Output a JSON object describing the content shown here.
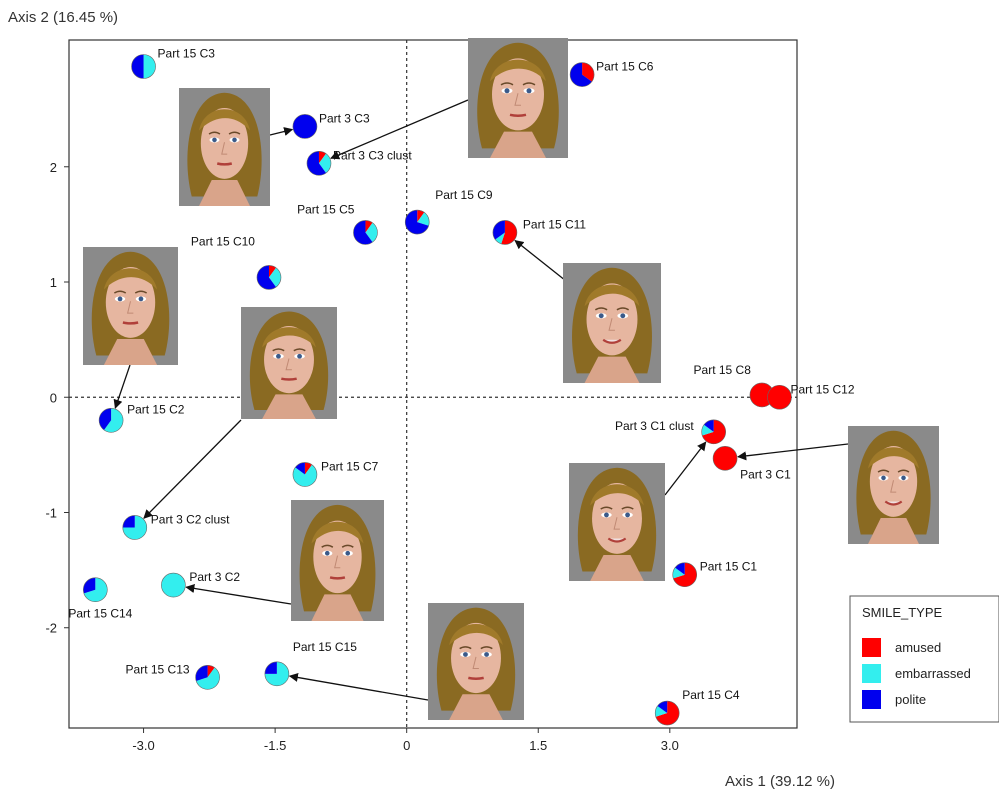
{
  "chart_data": {
    "type": "scatter",
    "title": "",
    "xlabel": "Axis 1 (39.12 %)",
    "ylabel": "Axis 2 (16.45 %)",
    "xlim": [
      -3.85,
      4.45
    ],
    "ylim": [
      -2.87,
      3.1
    ],
    "x_ticks": [
      {
        "v": -3.0,
        "label": "-3.0"
      },
      {
        "v": -1.5,
        "label": "-1.5"
      },
      {
        "v": 0,
        "label": "0"
      },
      {
        "v": 1.5,
        "label": "1.5"
      },
      {
        "v": 3.0,
        "label": "3.0"
      }
    ],
    "y_ticks": [
      {
        "v": 2,
        "label": "2"
      },
      {
        "v": 1,
        "label": "1"
      },
      {
        "v": 0,
        "label": "0"
      },
      {
        "v": -1,
        "label": "-1"
      },
      {
        "v": -2,
        "label": "-2"
      }
    ],
    "reference_lines": {
      "x": 0,
      "y": 0,
      "style": "dotted"
    },
    "grid": false,
    "legend": {
      "title": "SMILE_TYPE",
      "position": "bottom-right",
      "entries": [
        {
          "name": "amused",
          "color": "#ff0000"
        },
        {
          "name": "embarrassed",
          "color": "#33eeee"
        },
        {
          "name": "polite",
          "color": "#0000ee"
        }
      ]
    },
    "series_colors": [
      "#ff0000",
      "#33eeee",
      "#0000ee"
    ],
    "points": [
      {
        "label": "Part 15 C3",
        "x": -3.0,
        "y": 2.87,
        "dx": 14,
        "dy": -9,
        "anchor": "start",
        "pie": [
          0,
          0.5,
          0.5
        ]
      },
      {
        "label": "Part 15 C6",
        "x": 2.0,
        "y": 2.8,
        "dx": 14,
        "dy": -4,
        "anchor": "start",
        "pie": [
          0.35,
          0,
          0.65
        ]
      },
      {
        "label": "Part 3 C3",
        "x": -1.16,
        "y": 2.35,
        "dx": 14,
        "dy": -4,
        "anchor": "start",
        "pie": [
          0,
          0,
          1
        ]
      },
      {
        "label": "Part 3 C3 clust",
        "x": -1.0,
        "y": 2.03,
        "dx": 14,
        "dy": -4,
        "anchor": "start",
        "pie": [
          0.1,
          0.3,
          0.6
        ]
      },
      {
        "label": "Part 15 C9",
        "x": 0.12,
        "y": 1.52,
        "dx": 18,
        "dy": -23,
        "anchor": "start",
        "pie": [
          0.1,
          0.2,
          0.7
        ]
      },
      {
        "label": "Part 15 C5",
        "x": -0.47,
        "y": 1.43,
        "dx": -11,
        "dy": -19,
        "anchor": "end",
        "pie": [
          0.1,
          0.3,
          0.6
        ]
      },
      {
        "label": "Part 15 C11",
        "x": 1.12,
        "y": 1.43,
        "dx": 18,
        "dy": -4,
        "anchor": "start",
        "pie": [
          0.55,
          0.1,
          0.35
        ]
      },
      {
        "label": "Part 15 C10",
        "x": -1.57,
        "y": 1.04,
        "dx": -14,
        "dy": -32,
        "anchor": "end",
        "pie": [
          0.1,
          0.3,
          0.6
        ]
      },
      {
        "label": "Part 15 C8",
        "x": 4.05,
        "y": 0.02,
        "dx": -11,
        "dy": -21,
        "anchor": "end",
        "pie": [
          1,
          0,
          0
        ]
      },
      {
        "label": "Part 15 C12",
        "x": 4.25,
        "y": 0.0,
        "dx": 11,
        "dy": -4,
        "anchor": "start",
        "pie": [
          1,
          0,
          0
        ]
      },
      {
        "label": "Part 15 C2",
        "x": -3.37,
        "y": -0.2,
        "dx": 16,
        "dy": -7,
        "anchor": "start",
        "pie": [
          0,
          0.6,
          0.4
        ]
      },
      {
        "label": "Part 3 C1 clust",
        "x": 3.5,
        "y": -0.3,
        "dx": -20,
        "dy": -2,
        "anchor": "end",
        "pie": [
          0.7,
          0.15,
          0.15
        ]
      },
      {
        "label": "Part 3 C1",
        "x": 3.63,
        "y": -0.53,
        "dx": 15,
        "dy": 20,
        "anchor": "start",
        "pie": [
          1,
          0,
          0
        ]
      },
      {
        "label": "Part 15 C7",
        "x": -1.16,
        "y": -0.67,
        "dx": 16,
        "dy": -4,
        "anchor": "start",
        "pie": [
          0.1,
          0.75,
          0.15
        ]
      },
      {
        "label": "Part 3 C2 clust",
        "x": -3.1,
        "y": -1.13,
        "dx": 16,
        "dy": -4,
        "anchor": "start",
        "pie": [
          0,
          0.75,
          0.25
        ]
      },
      {
        "label": "Part 15 C1",
        "x": 3.17,
        "y": -1.54,
        "dx": 15,
        "dy": -4,
        "anchor": "start",
        "pie": [
          0.7,
          0.15,
          0.15
        ]
      },
      {
        "label": "Part 3 C2",
        "x": -2.66,
        "y": -1.63,
        "dx": 16,
        "dy": -4,
        "anchor": "start",
        "pie": [
          0,
          1,
          0
        ]
      },
      {
        "label": "Part 15 C14",
        "x": -3.55,
        "y": -1.67,
        "dx": -27,
        "dy": 28,
        "anchor": "start",
        "pie": [
          0,
          0.7,
          0.3
        ]
      },
      {
        "label": "Part 15 C15",
        "x": -1.48,
        "y": -2.4,
        "dx": 16,
        "dy": -23,
        "anchor": "start",
        "pie": [
          0,
          0.75,
          0.25
        ]
      },
      {
        "label": "Part 15 C13",
        "x": -2.27,
        "y": -2.43,
        "dx": -18,
        "dy": -4,
        "anchor": "end",
        "pie": [
          0.1,
          0.6,
          0.3
        ]
      },
      {
        "label": "Part 15 C4",
        "x": 2.97,
        "y": -2.74,
        "dx": 15,
        "dy": -14,
        "anchor": "start",
        "pie": [
          0.7,
          0.15,
          0.15
        ]
      }
    ],
    "face_images": [
      {
        "name": "face-image-part15-c6-area",
        "target": "Part 3 C3 clust",
        "variant": "neutral"
      },
      {
        "name": "face-image-part3-c3",
        "target": "Part 3 C3",
        "variant": "neutral"
      },
      {
        "name": "face-image-part15-c2",
        "target": "Part 15 C2",
        "variant": "neutral"
      },
      {
        "name": "face-image-part3-c2-clust",
        "target": "Part 3 C2 clust",
        "variant": "neutral"
      },
      {
        "name": "face-image-part15-c11",
        "target": "Part 15 C11",
        "variant": "smile"
      },
      {
        "name": "face-image-part3-c1",
        "target": "Part 3 C1",
        "variant": "smile"
      },
      {
        "name": "face-image-part3-c1-clust",
        "target": "Part 3 C1 clust",
        "variant": "smile"
      },
      {
        "name": "face-image-part3-c2",
        "target": "Part 3 C2",
        "variant": "neutral"
      },
      {
        "name": "face-image-part15-c15",
        "target": "Part 15 C15",
        "variant": "neutral"
      }
    ]
  }
}
